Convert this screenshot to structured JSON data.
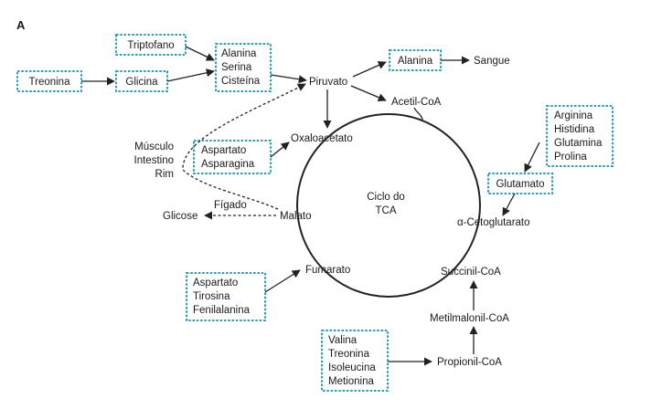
{
  "panel_label": "A",
  "boxes": {
    "treonina": "Treonina",
    "glicina": "Glicina",
    "triptofano": "Triptofano",
    "ala_ser_cis": [
      "Alanina",
      "Serina",
      "Cisteína"
    ],
    "alanina": "Alanina",
    "asp_asn": [
      "Aspartato",
      "Asparagina"
    ],
    "arg_his_gln_pro": [
      "Arginina",
      "Histidina",
      "Glutamina",
      "Prolina"
    ],
    "glutamato": "Glutamato",
    "asp_tir_fen": [
      "Aspartato",
      "Tirosina",
      "Fenilalanina"
    ],
    "val_thr_ile_met": [
      "Valina",
      "Treonina",
      "Isoleucina",
      "Metionina"
    ]
  },
  "labels": {
    "piruvato": "Piruvato",
    "sangue": "Sangue",
    "acetil_coa": "Acetil-CoA",
    "oxaloacetato": "Oxaloacetato",
    "tissues": [
      "Músculo",
      "Intestino",
      "Rim"
    ],
    "figado": "Fígado",
    "glicose": "Glicose",
    "malato": "Malato",
    "cycle_name": [
      "Ciclo do",
      "TCA"
    ],
    "alfa_ceto": "α-Cetoglutarato",
    "fumarato": "Fumarato",
    "succinil_coa": "Succinil-CoA",
    "metilmalonil_coa": "Metilmalonil-CoA",
    "propionil_coa": "Propionil-CoA"
  }
}
